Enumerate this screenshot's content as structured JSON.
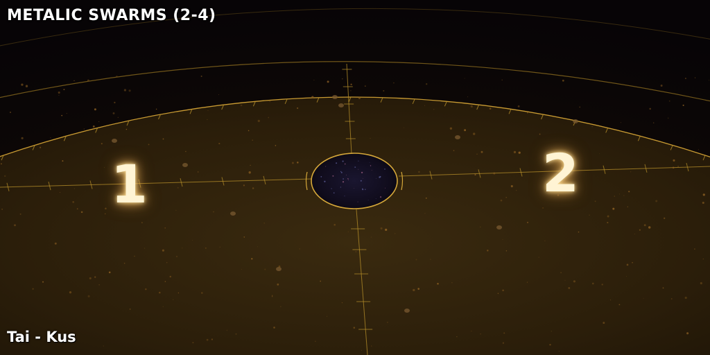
{
  "map": {
    "title": "METALIC SWARMS (2-4)",
    "name": "Tai - Kus"
  },
  "spawns": [
    {
      "label": "1"
    },
    {
      "label": "2"
    }
  ],
  "colors": {
    "space": "#0a0608",
    "arena_floor": "#2a1d0a",
    "grid_line": "#b8902a",
    "spawn_glow": "#ffd98a",
    "hole_interior": "#120f1c"
  },
  "icons": {
    "crosshair": "grid-crosshair",
    "center": "center-void"
  }
}
